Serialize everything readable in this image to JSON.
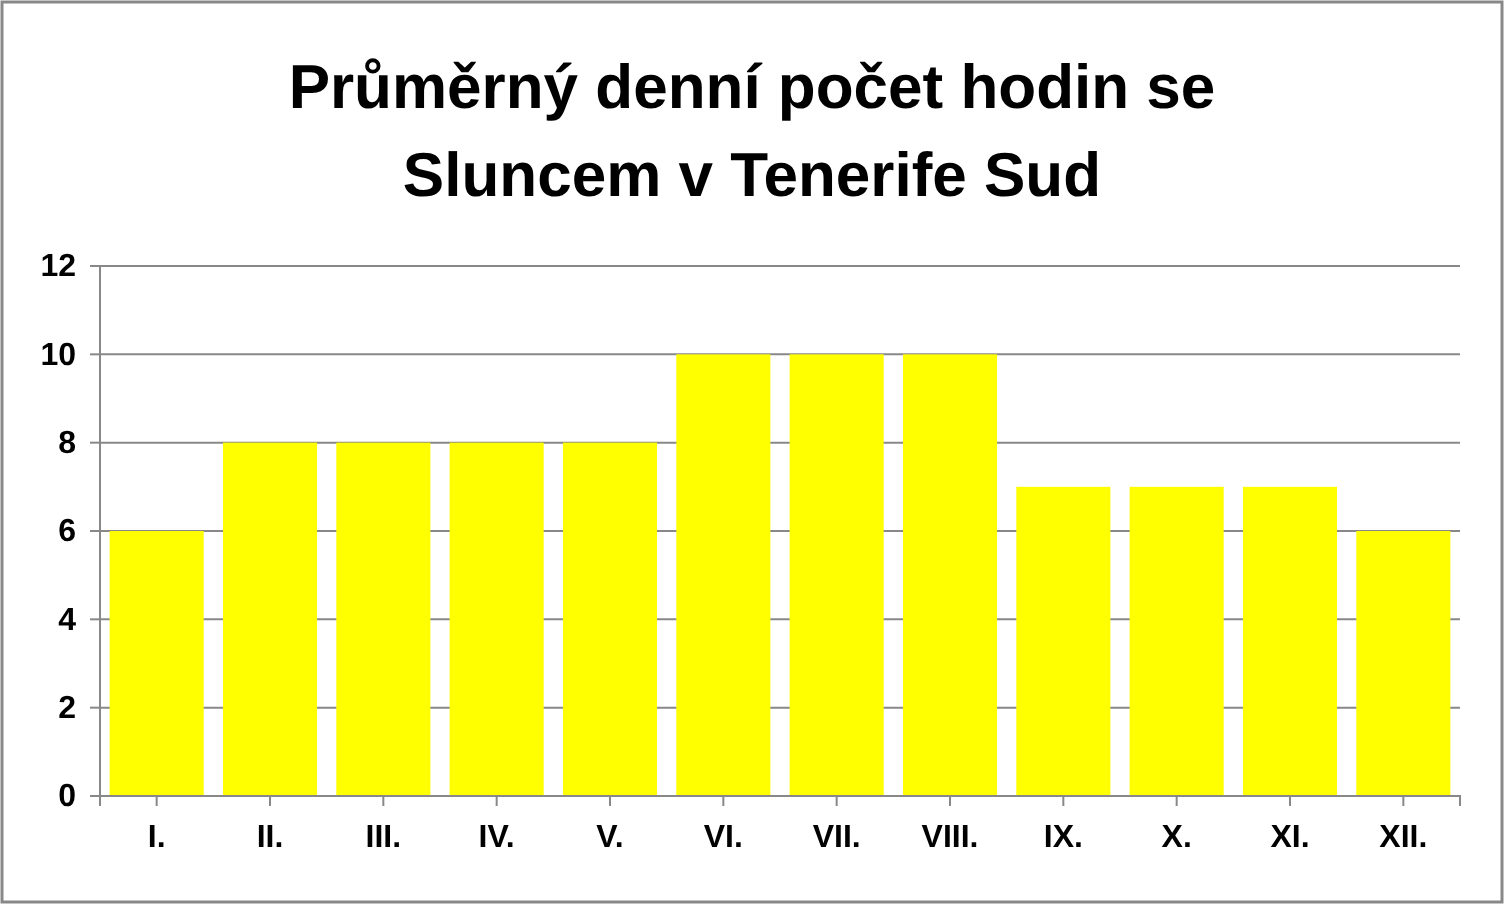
{
  "chart_data": {
    "type": "bar",
    "title": "Průměrný denní počet hodin se Sluncem v Tenerife Sud",
    "categories": [
      "I.",
      "II.",
      "III.",
      "IV.",
      "V.",
      "VI.",
      "VII.",
      "VIII.",
      "IX.",
      "X.",
      "XI.",
      "XII."
    ],
    "values": [
      6,
      8,
      8,
      8,
      8,
      10,
      10,
      10,
      7,
      7,
      7,
      6
    ],
    "color": "#ffff00",
    "ylim": [
      0,
      12
    ],
    "yticks": [
      0,
      2,
      4,
      6,
      8,
      10,
      12
    ],
    "grid": "y"
  }
}
